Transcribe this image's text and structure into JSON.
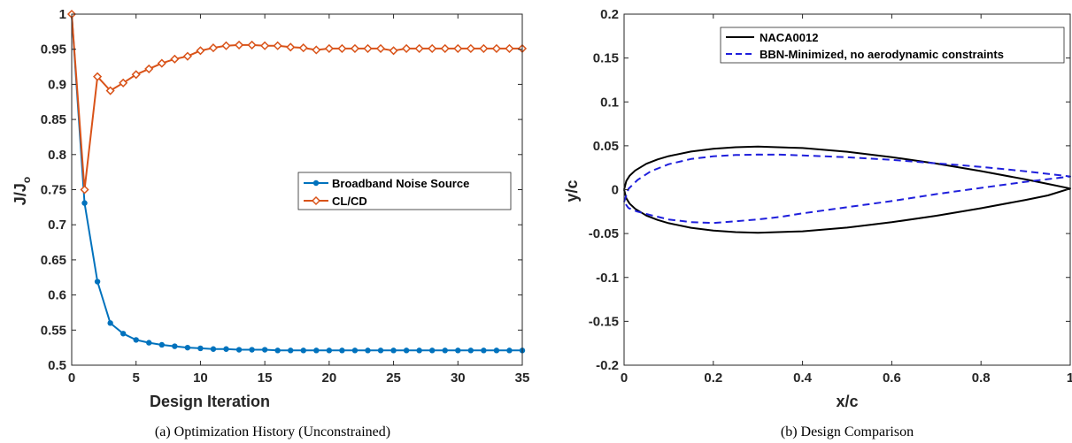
{
  "chart_data": [
    {
      "type": "line",
      "caption": "(a) Optimization History (Unconstrained)",
      "xlabel": "Design Iteration",
      "ylabel": "J/J",
      "ylabel_sub": "o",
      "xlim": [
        0,
        35
      ],
      "ylim": [
        0.5,
        1
      ],
      "xticks": [
        0,
        5,
        10,
        15,
        20,
        25,
        30,
        35
      ],
      "yticks": [
        0.5,
        0.55,
        0.6,
        0.65,
        0.7,
        0.75,
        0.8,
        0.85,
        0.9,
        0.95,
        1
      ],
      "yticklabels": [
        "0.5",
        "0.55",
        "0.6",
        "0.65",
        "0.7",
        "0.75",
        "0.8",
        "0.85",
        "0.9",
        "0.95",
        "1"
      ],
      "grid": false,
      "legend_position": "middle-right",
      "x": [
        0,
        1,
        2,
        3,
        4,
        5,
        6,
        7,
        8,
        9,
        10,
        11,
        12,
        13,
        14,
        15,
        16,
        17,
        18,
        19,
        20,
        21,
        22,
        23,
        24,
        25,
        26,
        27,
        28,
        29,
        30,
        31,
        32,
        33,
        34,
        35
      ],
      "series": [
        {
          "name": "Broadband Noise Source",
          "color": "#0072bd",
          "marker": "circle",
          "values": [
            1.0,
            0.731,
            0.619,
            0.56,
            0.545,
            0.536,
            0.532,
            0.529,
            0.527,
            0.525,
            0.524,
            0.523,
            0.523,
            0.522,
            0.522,
            0.522,
            0.521,
            0.521,
            0.521,
            0.521,
            0.521,
            0.521,
            0.521,
            0.521,
            0.521,
            0.521,
            0.521,
            0.521,
            0.521,
            0.521,
            0.521,
            0.521,
            0.521,
            0.521,
            0.521,
            0.521
          ]
        },
        {
          "name": "CL/CD",
          "color": "#d95319",
          "marker": "diamond",
          "values": [
            1.0,
            0.75,
            0.911,
            0.891,
            0.902,
            0.914,
            0.922,
            0.93,
            0.936,
            0.94,
            0.948,
            0.952,
            0.955,
            0.956,
            0.956,
            0.955,
            0.955,
            0.953,
            0.952,
            0.949,
            0.951,
            0.951,
            0.951,
            0.951,
            0.951,
            0.948,
            0.951,
            0.951,
            0.951,
            0.951,
            0.951,
            0.951,
            0.951,
            0.951,
            0.951,
            0.951
          ]
        }
      ]
    },
    {
      "type": "line",
      "caption": "(b) Design Comparison",
      "xlabel": "x/c",
      "ylabel": "y/c",
      "xlim": [
        0,
        1
      ],
      "ylim": [
        -0.2,
        0.2
      ],
      "xticks": [
        0,
        0.2,
        0.4,
        0.6,
        0.8,
        1
      ],
      "xticklabels": [
        "0",
        "0.2",
        "0.4",
        "0.6",
        "0.8",
        "1"
      ],
      "yticks": [
        -0.2,
        -0.15,
        -0.1,
        -0.05,
        0,
        0.05,
        0.1,
        0.15,
        0.2
      ],
      "yticklabels": [
        "-0.2",
        "-0.15",
        "-0.1",
        "-0.05",
        "0",
        "0.05",
        "0.1",
        "0.15",
        "0.2"
      ],
      "grid": false,
      "legend_position": "top-right",
      "series": [
        {
          "name": "NACA0012",
          "color": "#000000",
          "style": "solid",
          "x": [
            0,
            0.005,
            0.0125,
            0.025,
            0.05,
            0.075,
            0.1,
            0.15,
            0.2,
            0.25,
            0.3,
            0.4,
            0.5,
            0.6,
            0.7,
            0.8,
            0.9,
            0.95,
            1,
            0.95,
            0.9,
            0.8,
            0.7,
            0.6,
            0.5,
            0.4,
            0.3,
            0.25,
            0.2,
            0.15,
            0.1,
            0.075,
            0.05,
            0.025,
            0.0125,
            0.005,
            0
          ],
          "y": [
            0,
            0.0099,
            0.0159,
            0.0219,
            0.0295,
            0.0345,
            0.0382,
            0.0434,
            0.0466,
            0.0484,
            0.0491,
            0.0475,
            0.0432,
            0.0371,
            0.0297,
            0.0212,
            0.0117,
            0.0065,
            0.0013,
            -0.0065,
            -0.0117,
            -0.0212,
            -0.0297,
            -0.0371,
            -0.0432,
            -0.0475,
            -0.0491,
            -0.0484,
            -0.0466,
            -0.0434,
            -0.0382,
            -0.0345,
            -0.0295,
            -0.0219,
            -0.0159,
            -0.0099,
            0
          ]
        },
        {
          "name": "BBN-Minimized, no aerodynamic constraints",
          "color": "#1f1fdc",
          "style": "dashed",
          "x": [
            0,
            0.01,
            0.03,
            0.06,
            0.1,
            0.15,
            0.2,
            0.25,
            0.3,
            0.35,
            0.4,
            0.5,
            0.6,
            0.7,
            0.8,
            0.9,
            1.0,
            0.9,
            0.8,
            0.7,
            0.6,
            0.5,
            0.4,
            0.35,
            0.3,
            0.25,
            0.2,
            0.15,
            0.1,
            0.06,
            0.03,
            0.01,
            0
          ],
          "y": [
            -0.014,
            0.001,
            0.011,
            0.021,
            0.029,
            0.035,
            0.038,
            0.0395,
            0.04,
            0.0399,
            0.039,
            0.037,
            0.034,
            0.03,
            0.026,
            0.021,
            0.015,
            0.009,
            0.002,
            -0.005,
            -0.013,
            -0.02,
            -0.027,
            -0.031,
            -0.034,
            -0.036,
            -0.038,
            -0.037,
            -0.034,
            -0.029,
            -0.025,
            -0.021,
            -0.014
          ]
        }
      ]
    }
  ]
}
